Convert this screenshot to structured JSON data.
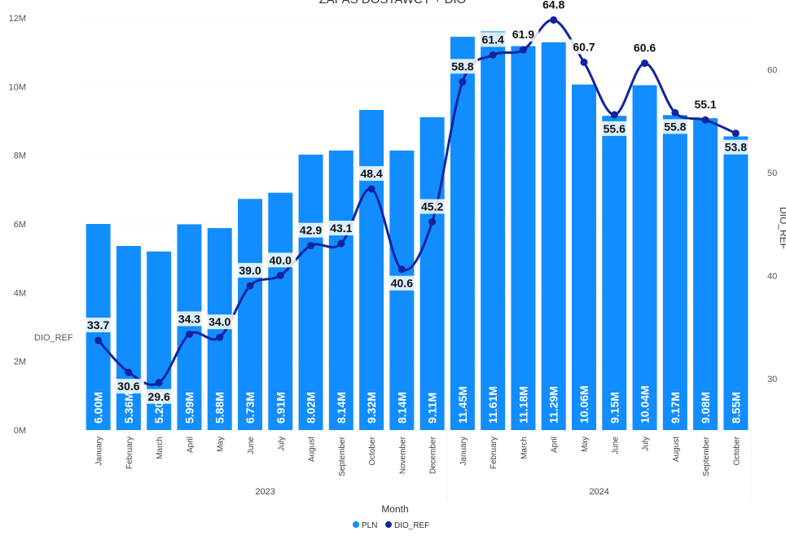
{
  "chart_data": {
    "type": "bar+line",
    "title": "ZAPAS DOSTAWCY + DIO",
    "xlabel": "Month",
    "ylabel_right": "DIO_REF",
    "y_axis_inline_label": "DIO_REF",
    "categories": [
      "January",
      "February",
      "March",
      "April",
      "May",
      "June",
      "July",
      "August",
      "September",
      "October",
      "November",
      "December",
      "January",
      "February",
      "March",
      "April",
      "May",
      "June",
      "July",
      "August",
      "September",
      "October"
    ],
    "years": [
      {
        "label": "2023",
        "start": 0,
        "end": 11
      },
      {
        "label": "2024",
        "start": 12,
        "end": 21
      }
    ],
    "y_left": {
      "min": 0,
      "max": 12000000,
      "ticks": [
        "0M",
        "2M",
        "4M",
        "6M",
        "8M",
        "10M",
        "12M"
      ]
    },
    "y_right": {
      "min": 25,
      "max": 65,
      "ticks": [
        "30",
        "40",
        "50",
        "60"
      ]
    },
    "series": [
      {
        "name": "PLN",
        "type": "bar",
        "color": "#118dff",
        "values": [
          6000000,
          5360000,
          5200000,
          5990000,
          5880000,
          6730000,
          6910000,
          8020000,
          8140000,
          9320000,
          8140000,
          9110000,
          11450000,
          11610000,
          11180000,
          11290000,
          10060000,
          9150000,
          10040000,
          9170000,
          9080000,
          8550000
        ],
        "labels": [
          "6.00M",
          "5.36M",
          "5.20M",
          "5.99M",
          "5.88M",
          "6.73M",
          "6.91M",
          "8.02M",
          "8.14M",
          "9.32M",
          "8.14M",
          "9.11M",
          "11.45M",
          "11.61M",
          "11.18M",
          "11.29M",
          "10.06M",
          "9.15M",
          "10.04M",
          "9.17M",
          "9.08M",
          "8.55M"
        ]
      },
      {
        "name": "DIO_REF",
        "type": "line",
        "color": "#12239e",
        "values": [
          33.7,
          30.6,
          29.6,
          34.3,
          34.0,
          39.0,
          40.0,
          42.9,
          43.1,
          48.4,
          40.6,
          45.2,
          58.8,
          61.4,
          61.9,
          64.8,
          60.7,
          55.6,
          60.6,
          55.8,
          55.1,
          53.8
        ],
        "labels": [
          "33.7",
          "30.6",
          "29.6",
          "34.3",
          "34.0",
          "39.0",
          "40.0",
          "42.9",
          "43.1",
          "48.4",
          "40.6",
          "45.2",
          "58.8",
          "61.4",
          "61.9",
          "64.8",
          "60.7",
          "55.6",
          "60.6",
          "55.8",
          "55.1",
          "53.8"
        ]
      }
    ],
    "legend": {
      "position": "bottom-center",
      "items": [
        "PLN",
        "DIO_REF"
      ]
    }
  }
}
